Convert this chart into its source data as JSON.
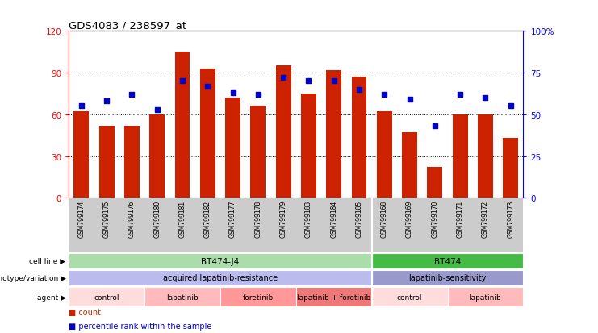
{
  "title": "GDS4083 / 238597_at",
  "samples": [
    "GSM799174",
    "GSM799175",
    "GSM799176",
    "GSM799180",
    "GSM799181",
    "GSM799182",
    "GSM799177",
    "GSM799178",
    "GSM799179",
    "GSM799183",
    "GSM799184",
    "GSM799185",
    "GSM799168",
    "GSM799169",
    "GSM799170",
    "GSM799171",
    "GSM799172",
    "GSM799173"
  ],
  "counts": [
    62,
    52,
    52,
    60,
    105,
    93,
    72,
    66,
    95,
    75,
    92,
    87,
    62,
    47,
    22,
    60,
    60,
    43
  ],
  "percentiles": [
    55,
    58,
    62,
    53,
    70,
    67,
    63,
    62,
    72,
    70,
    70,
    65,
    62,
    59,
    43,
    62,
    60,
    55
  ],
  "ylim_left": [
    0,
    120
  ],
  "ylim_right": [
    0,
    100
  ],
  "yticks_left": [
    0,
    30,
    60,
    90,
    120
  ],
  "yticks_right": [
    0,
    25,
    50,
    75,
    100
  ],
  "bar_color": "#cc2200",
  "dot_color": "#0000cc",
  "cell_line_groups": [
    {
      "label": "BT474-J4",
      "start": 0,
      "end": 11,
      "color": "#aaddaa"
    },
    {
      "label": "BT474",
      "start": 12,
      "end": 17,
      "color": "#44bb44"
    }
  ],
  "genotype_groups": [
    {
      "label": "acquired lapatinib-resistance",
      "start": 0,
      "end": 11,
      "color": "#bbbbee"
    },
    {
      "label": "lapatinib-sensitivity",
      "start": 12,
      "end": 17,
      "color": "#9999cc"
    }
  ],
  "agent_groups": [
    {
      "label": "control",
      "start": 0,
      "end": 2,
      "color": "#ffdddd"
    },
    {
      "label": "lapatinib",
      "start": 3,
      "end": 5,
      "color": "#ffbbbb"
    },
    {
      "label": "foretinib",
      "start": 6,
      "end": 8,
      "color": "#ff9999"
    },
    {
      "label": "lapatinib + foretinib",
      "start": 9,
      "end": 11,
      "color": "#ee7777"
    },
    {
      "label": "control",
      "start": 12,
      "end": 14,
      "color": "#ffdddd"
    },
    {
      "label": "lapatinib",
      "start": 15,
      "end": 17,
      "color": "#ffbbbb"
    }
  ],
  "row_labels": [
    "cell line",
    "genotype/variation",
    "agent"
  ],
  "legend_count_label": "count",
  "legend_pct_label": "percentile rank within the sample",
  "legend_count_color": "#cc2200",
  "legend_pct_color": "#0000cc",
  "xlabel_bg_color": "#cccccc",
  "bar_width": 0.6,
  "dot_size": 20
}
